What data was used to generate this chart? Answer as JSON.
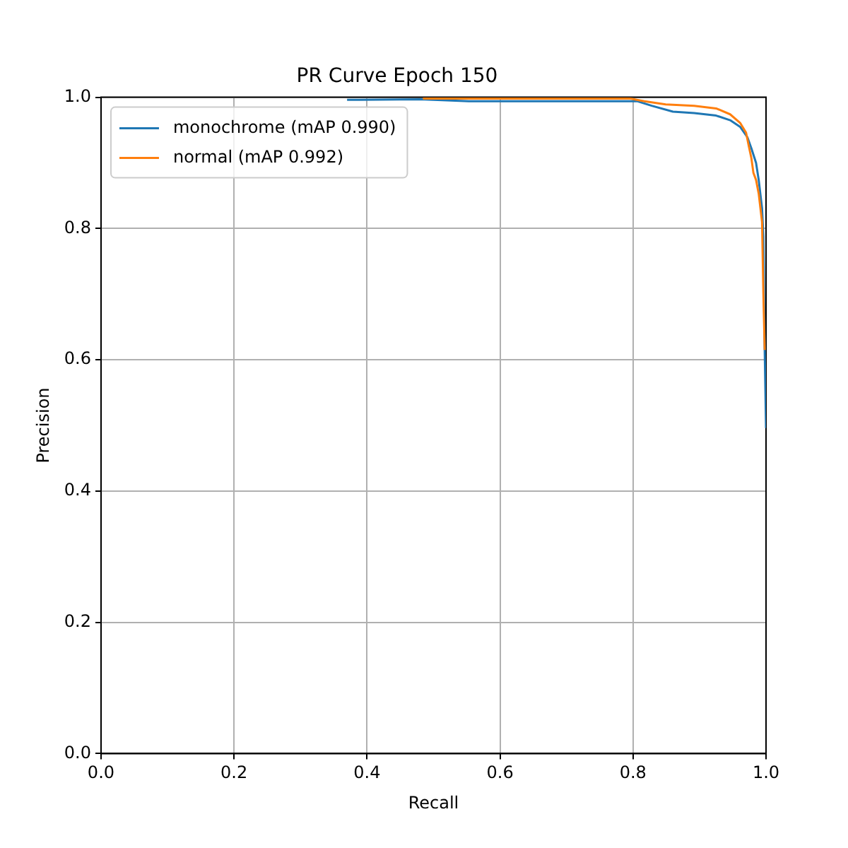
{
  "chart_data": {
    "type": "line",
    "title": "PR Curve Epoch 150",
    "xlabel": "Recall",
    "ylabel": "Precision",
    "xlim": [
      0,
      1
    ],
    "ylim": [
      0,
      1
    ],
    "xticks": [
      {
        "value": 0,
        "label": "0.0"
      },
      {
        "value": 0.2,
        "label": "0.2"
      },
      {
        "value": 0.4,
        "label": "0.4"
      },
      {
        "value": 0.6,
        "label": "0.6"
      },
      {
        "value": 0.8,
        "label": "0.8"
      },
      {
        "value": 1,
        "label": "1.0"
      }
    ],
    "yticks": [
      {
        "value": 0,
        "label": "0.0"
      },
      {
        "value": 0.2,
        "label": "0.2"
      },
      {
        "value": 0.4,
        "label": "0.4"
      },
      {
        "value": 0.6,
        "label": "0.6"
      },
      {
        "value": 0.8,
        "label": "0.8"
      },
      {
        "value": 1,
        "label": "1.0"
      }
    ],
    "grid": true,
    "legend": "top left",
    "marker": "none",
    "line_style": "solid",
    "series": [
      {
        "name": "monochrome (mAP 0.990)",
        "color": "#1f77b4",
        "x": [
          0.37,
          0.48,
          0.553,
          0.806,
          0.828,
          0.86,
          0.892,
          0.925,
          0.946,
          0.961,
          0.972,
          0.978,
          0.985,
          0.989,
          0.994,
          0.996,
          0.998,
          1.0
        ],
        "values": [
          0.996,
          0.997,
          0.994,
          0.994,
          0.987,
          0.978,
          0.976,
          0.972,
          0.965,
          0.955,
          0.939,
          0.922,
          0.9,
          0.874,
          0.831,
          0.788,
          0.615,
          0.496
        ]
      },
      {
        "name": "normal (mAP 0.992)",
        "color": "#ff7f0e",
        "x": [
          0.484,
          0.796,
          0.817,
          0.849,
          0.892,
          0.925,
          0.946,
          0.961,
          0.97,
          0.974,
          0.978,
          0.981,
          0.985,
          0.989,
          0.994,
          0.996,
          0.998
        ],
        "values": [
          0.998,
          0.998,
          0.994,
          0.989,
          0.987,
          0.983,
          0.974,
          0.961,
          0.946,
          0.926,
          0.907,
          0.885,
          0.874,
          0.853,
          0.81,
          0.701,
          0.615
        ]
      }
    ]
  }
}
